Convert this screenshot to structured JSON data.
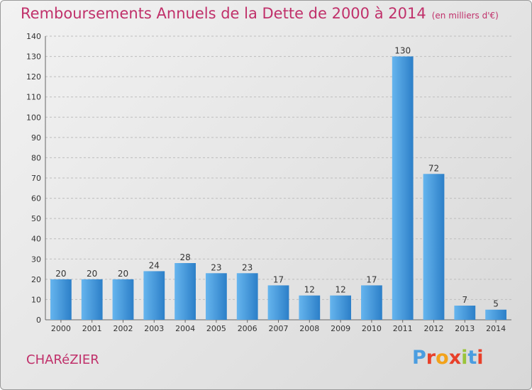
{
  "title": "Remboursements Annuels de la Dette de 2000 à 2014",
  "unit": "(en milliers d'€)",
  "town": "CHARéZIER",
  "logo": {
    "letters": [
      "P",
      "r",
      "o",
      "x",
      "i",
      "t",
      "i"
    ],
    "colors": [
      "#4a9de0",
      "#e8402a",
      "#f2a21a",
      "#e8402a",
      "#9ac43a",
      "#4a9de0",
      "#e8402a"
    ]
  },
  "colors": {
    "bar": "#3a8fd6",
    "bar_light": "#5fb0ec",
    "title": "#c0306a",
    "grid": "#bdbdbd"
  },
  "chart_data": {
    "type": "bar",
    "title": "Remboursements Annuels de la Dette de 2000 à 2014",
    "categories": [
      "2000",
      "2001",
      "2002",
      "2003",
      "2004",
      "2005",
      "2006",
      "2007",
      "2008",
      "2009",
      "2010",
      "2011",
      "2012",
      "2013",
      "2014"
    ],
    "values": [
      20,
      20,
      20,
      24,
      28,
      23,
      23,
      17,
      12,
      12,
      17,
      130,
      72,
      7,
      5
    ],
    "ylim": [
      0,
      140
    ],
    "yticks": [
      0,
      10,
      20,
      30,
      40,
      50,
      60,
      70,
      80,
      90,
      100,
      110,
      120,
      130,
      140
    ],
    "grid": true
  }
}
